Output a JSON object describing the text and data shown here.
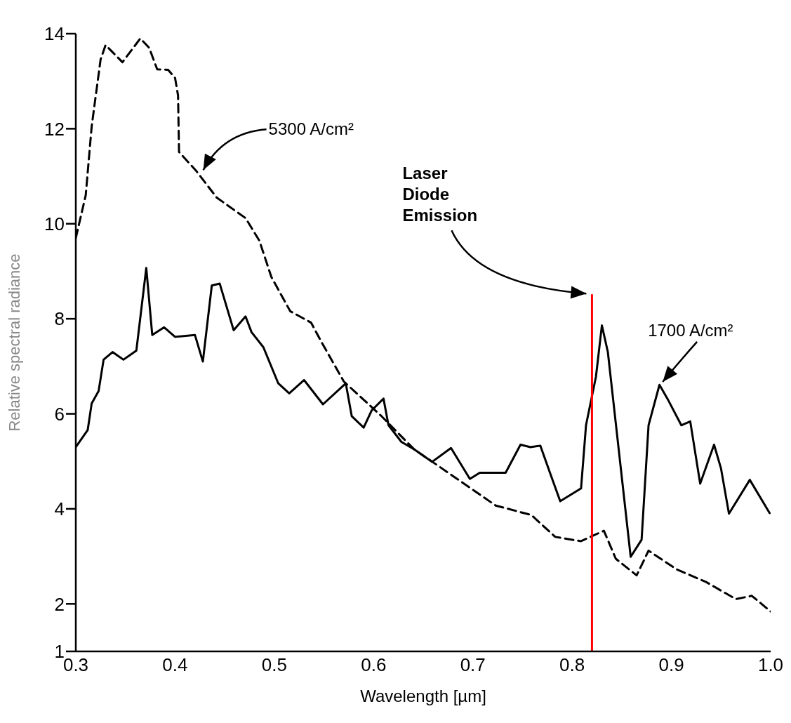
{
  "chart_data": {
    "type": "line",
    "xlabel": "Wavelength [µm]",
    "ylabel": "Relative spectral radiance",
    "xlim": [
      0.3,
      1.0
    ],
    "xticks": [
      0.3,
      0.4,
      0.5,
      0.6,
      0.7,
      0.8,
      0.9,
      {
        "value": 1.0,
        "label": "1.0"
      }
    ],
    "ylim": [
      1,
      14
    ],
    "yticks": [
      1,
      2,
      4,
      6,
      8,
      10,
      12,
      14
    ],
    "grid": false,
    "legend": false,
    "marker": "none",
    "series": [
      {
        "color": "#000000",
        "line_style": "dashed",
        "x": [
          0.3,
          0.31,
          0.316,
          0.325,
          0.33,
          0.347,
          0.365,
          0.374,
          0.382,
          0.393,
          0.4,
          0.403,
          0.404,
          0.421,
          0.442,
          0.471,
          0.485,
          0.497,
          0.516,
          0.537,
          0.547,
          0.57,
          0.607,
          0.641,
          0.662,
          0.723,
          0.759,
          0.783,
          0.809,
          0.832,
          0.844,
          0.865,
          0.877,
          0.905,
          0.935,
          0.965,
          0.981,
          1.0
        ],
        "values": [
          9.7,
          10.6,
          12.05,
          13.46,
          13.76,
          13.4,
          13.9,
          13.7,
          13.25,
          13.24,
          13.07,
          12.7,
          11.51,
          11.12,
          10.55,
          10.12,
          9.64,
          8.88,
          8.16,
          7.92,
          7.53,
          6.68,
          5.97,
          5.25,
          4.95,
          4.07,
          3.87,
          3.41,
          3.32,
          3.54,
          2.95,
          2.6,
          3.12,
          2.73,
          2.46,
          2.1,
          2.17,
          1.84
        ]
      },
      {
        "color": "#000000",
        "line_style": "solid",
        "x": [
          0.3,
          0.312,
          0.316,
          0.323,
          0.328,
          0.337,
          0.348,
          0.361,
          0.371,
          0.377,
          0.389,
          0.4,
          0.42,
          0.428,
          0.437,
          0.445,
          0.459,
          0.471,
          0.477,
          0.489,
          0.504,
          0.515,
          0.53,
          0.549,
          0.572,
          0.578,
          0.59,
          0.598,
          0.61,
          0.615,
          0.628,
          0.641,
          0.659,
          0.678,
          0.697,
          0.707,
          0.733,
          0.748,
          0.758,
          0.768,
          0.778,
          0.788,
          0.809,
          0.814,
          0.824,
          0.83,
          0.836,
          0.859,
          0.87,
          0.877,
          0.888,
          0.896,
          0.91,
          0.919,
          0.929,
          0.943,
          0.95,
          0.958,
          0.979,
          0.999
        ],
        "values": [
          5.3,
          5.66,
          6.22,
          6.48,
          7.14,
          7.3,
          7.14,
          7.33,
          9.07,
          7.66,
          7.82,
          7.62,
          7.66,
          7.1,
          8.7,
          8.74,
          7.76,
          8.05,
          7.72,
          7.4,
          6.64,
          6.43,
          6.71,
          6.2,
          6.64,
          5.95,
          5.71,
          6.07,
          6.32,
          5.76,
          5.41,
          5.25,
          4.99,
          5.28,
          4.63,
          4.76,
          4.76,
          5.35,
          5.3,
          5.33,
          4.74,
          4.16,
          4.43,
          5.76,
          6.78,
          7.86,
          7.3,
          2.99,
          3.35,
          5.76,
          6.61,
          6.32,
          5.76,
          5.84,
          4.53,
          5.35,
          4.85,
          3.9,
          4.61,
          3.91
        ]
      },
      {
        "color": "#ff0000",
        "line_style": "solid",
        "x": [
          0.82,
          0.82
        ],
        "values": [
          1,
          8.5
        ]
      }
    ],
    "annotations": [
      {
        "text": "5300 A/cm²",
        "x": 0.427,
        "y": 11.1
      },
      {
        "text": "Laser Diode Emission",
        "x": 0.82,
        "y": 8.5
      },
      {
        "text": "1700 A/cm²",
        "x": 0.887,
        "y": 6.6
      }
    ]
  }
}
